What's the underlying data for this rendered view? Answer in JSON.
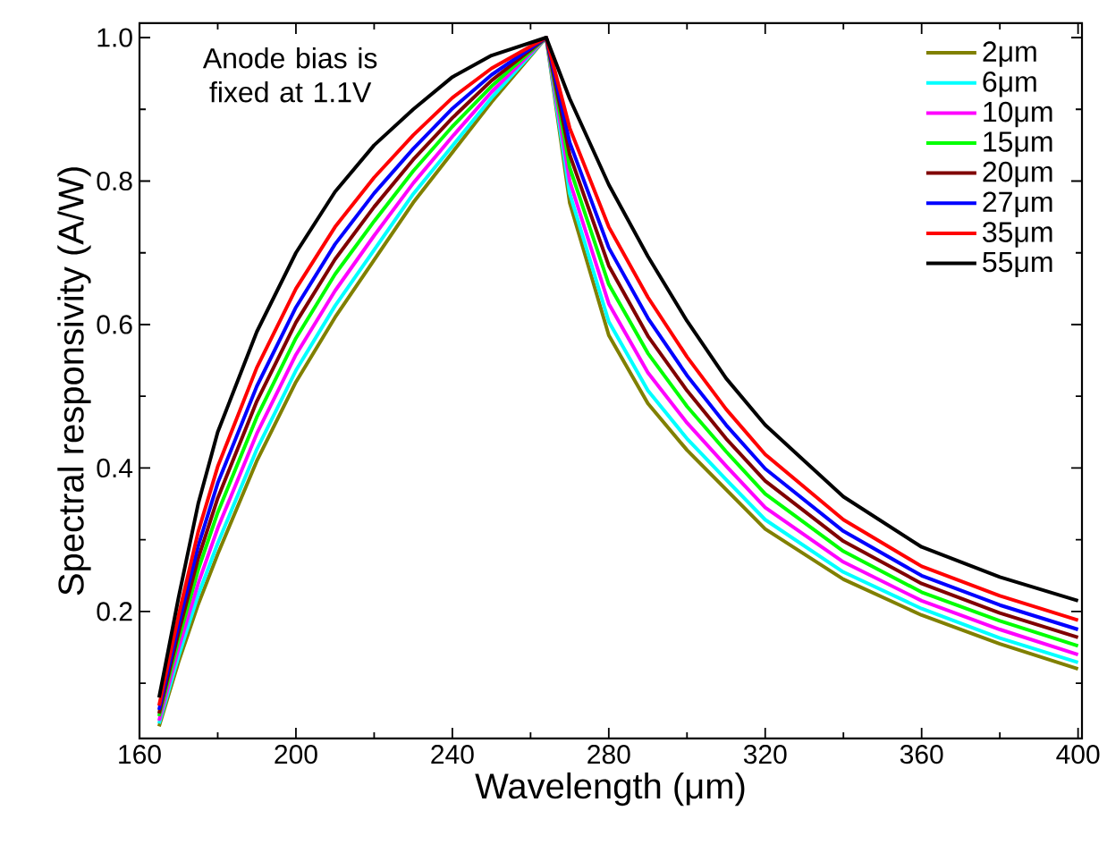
{
  "chart_data": {
    "type": "line",
    "xlabel": "Wavelength (μm)",
    "ylabel": "Spectral responsivity (A/W)",
    "annotations": [
      "Anode bias is fixed at 1.1V"
    ],
    "x": [
      165,
      170,
      175,
      180,
      190,
      200,
      210,
      220,
      230,
      240,
      250,
      264,
      270,
      280,
      290,
      300,
      310,
      320,
      340,
      360,
      380,
      400
    ],
    "xlim": [
      160,
      401
    ],
    "xticks": [
      160,
      {
        "value": 180,
        "label": null
      },
      200,
      {
        "value": 220,
        "label": null
      },
      240,
      {
        "value": 260,
        "label": null
      },
      280,
      {
        "value": 300,
        "label": null
      },
      320,
      {
        "value": 340,
        "label": null
      },
      360,
      {
        "value": 380,
        "label": null
      },
      400
    ],
    "ylim": [
      0.023,
      1.02
    ],
    "yticks": [
      {
        "value": 0.1,
        "label": null
      },
      0.2,
      {
        "value": 0.3,
        "label": null
      },
      0.4,
      {
        "value": 0.5,
        "label": null
      },
      0.6,
      {
        "value": 0.7,
        "label": null
      },
      0.8,
      {
        "value": 0.9,
        "label": null
      },
      {
        "value": 1.0,
        "label": "1.0"
      }
    ],
    "legend": "top right",
    "grid": false,
    "marker": "none",
    "line_style": "solid",
    "series": [
      {
        "name": "2μm",
        "color": "#808000",
        "values": [
          0.04,
          0.13,
          0.21,
          0.28,
          0.41,
          0.52,
          0.61,
          0.69,
          0.77,
          0.84,
          0.91,
          1.0,
          0.77,
          0.585,
          0.49,
          0.425,
          0.37,
          0.315,
          0.245,
          0.195,
          0.155,
          0.12
        ]
      },
      {
        "name": "6μm",
        "color": "#00ffff",
        "values": [
          0.044,
          0.138,
          0.223,
          0.295,
          0.426,
          0.536,
          0.626,
          0.704,
          0.782,
          0.849,
          0.916,
          1.0,
          0.783,
          0.604,
          0.508,
          0.441,
          0.384,
          0.328,
          0.255,
          0.204,
          0.163,
          0.129
        ]
      },
      {
        "name": "10μm",
        "color": "#ff00ff",
        "values": [
          0.048,
          0.149,
          0.239,
          0.316,
          0.448,
          0.558,
          0.647,
          0.724,
          0.797,
          0.862,
          0.924,
          1.0,
          0.8,
          0.629,
          0.533,
          0.463,
          0.403,
          0.345,
          0.269,
          0.215,
          0.175,
          0.14
        ]
      },
      {
        "name": "15μm",
        "color": "#00ff00",
        "values": [
          0.054,
          0.161,
          0.258,
          0.338,
          0.471,
          0.581,
          0.67,
          0.744,
          0.814,
          0.876,
          0.932,
          1.0,
          0.819,
          0.656,
          0.56,
          0.486,
          0.423,
          0.364,
          0.284,
          0.227,
          0.187,
          0.152
        ]
      },
      {
        "name": "20μm",
        "color": "#800000",
        "values": [
          0.058,
          0.171,
          0.274,
          0.358,
          0.493,
          0.603,
          0.691,
          0.764,
          0.83,
          0.888,
          0.94,
          1.0,
          0.837,
          0.682,
          0.584,
          0.508,
          0.441,
          0.382,
          0.298,
          0.239,
          0.198,
          0.164
        ]
      },
      {
        "name": "27μm",
        "color": "#0000ff",
        "values": [
          0.063,
          0.182,
          0.291,
          0.379,
          0.514,
          0.624,
          0.712,
          0.783,
          0.845,
          0.901,
          0.948,
          1.0,
          0.854,
          0.707,
          0.609,
          0.529,
          0.46,
          0.399,
          0.312,
          0.25,
          0.209,
          0.175
        ]
      },
      {
        "name": "35μm",
        "color": "#ff0000",
        "values": [
          0.069,
          0.195,
          0.311,
          0.402,
          0.54,
          0.65,
          0.736,
          0.805,
          0.864,
          0.916,
          0.957,
          1.0,
          0.874,
          0.736,
          0.638,
          0.555,
          0.482,
          0.419,
          0.328,
          0.263,
          0.222,
          0.188
        ]
      },
      {
        "name": "55μm",
        "color": "#000000",
        "values": [
          0.08,
          0.22,
          0.35,
          0.45,
          0.59,
          0.7,
          0.785,
          0.85,
          0.9,
          0.945,
          0.975,
          1.0,
          0.915,
          0.795,
          0.695,
          0.605,
          0.525,
          0.46,
          0.36,
          0.29,
          0.248,
          0.215
        ]
      }
    ]
  }
}
